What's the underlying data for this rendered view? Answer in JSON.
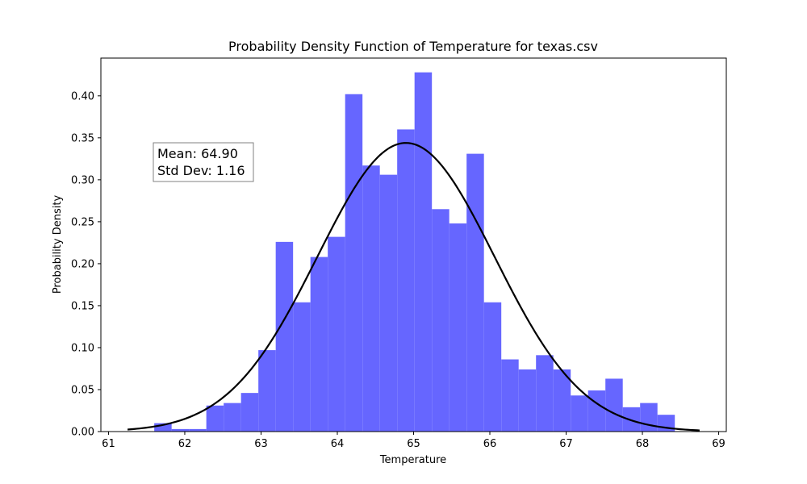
{
  "chart_data": {
    "type": "bar",
    "subtype": "histogram-with-normal-pdf",
    "title": "Probability Density Function of Temperature for texas.csv",
    "xlabel": "Temperature",
    "ylabel": "Probability Density",
    "xlim": [
      60.9,
      69.1
    ],
    "ylim": [
      0,
      0.445
    ],
    "xticks": [
      61,
      62,
      63,
      64,
      65,
      66,
      67,
      68,
      69
    ],
    "yticks": [
      0.0,
      0.05,
      0.1,
      0.15,
      0.2,
      0.25,
      0.3,
      0.35,
      0.4
    ],
    "ytick_labels": [
      "0.00",
      "0.05",
      "0.10",
      "0.15",
      "0.20",
      "0.25",
      "0.30",
      "0.35",
      "0.40"
    ],
    "bin_start": 61.6,
    "bin_width": 0.2275,
    "values": [
      0.01,
      0.003,
      0.003,
      0.031,
      0.034,
      0.046,
      0.097,
      0.226,
      0.154,
      0.208,
      0.232,
      0.402,
      0.317,
      0.306,
      0.36,
      0.428,
      0.265,
      0.248,
      0.331,
      0.154,
      0.086,
      0.074,
      0.091,
      0.074,
      0.043,
      0.049,
      0.063,
      0.029,
      0.034,
      0.02
    ],
    "bar_color": "#6666ff",
    "pdf": {
      "mean": 64.9,
      "std": 1.16,
      "x_range": [
        61.25,
        68.75
      ],
      "color": "#000000"
    },
    "stats_box": {
      "line1": "Mean: 64.90",
      "line2": "Std Dev: 1.16"
    },
    "grid": false,
    "legend": "none"
  }
}
